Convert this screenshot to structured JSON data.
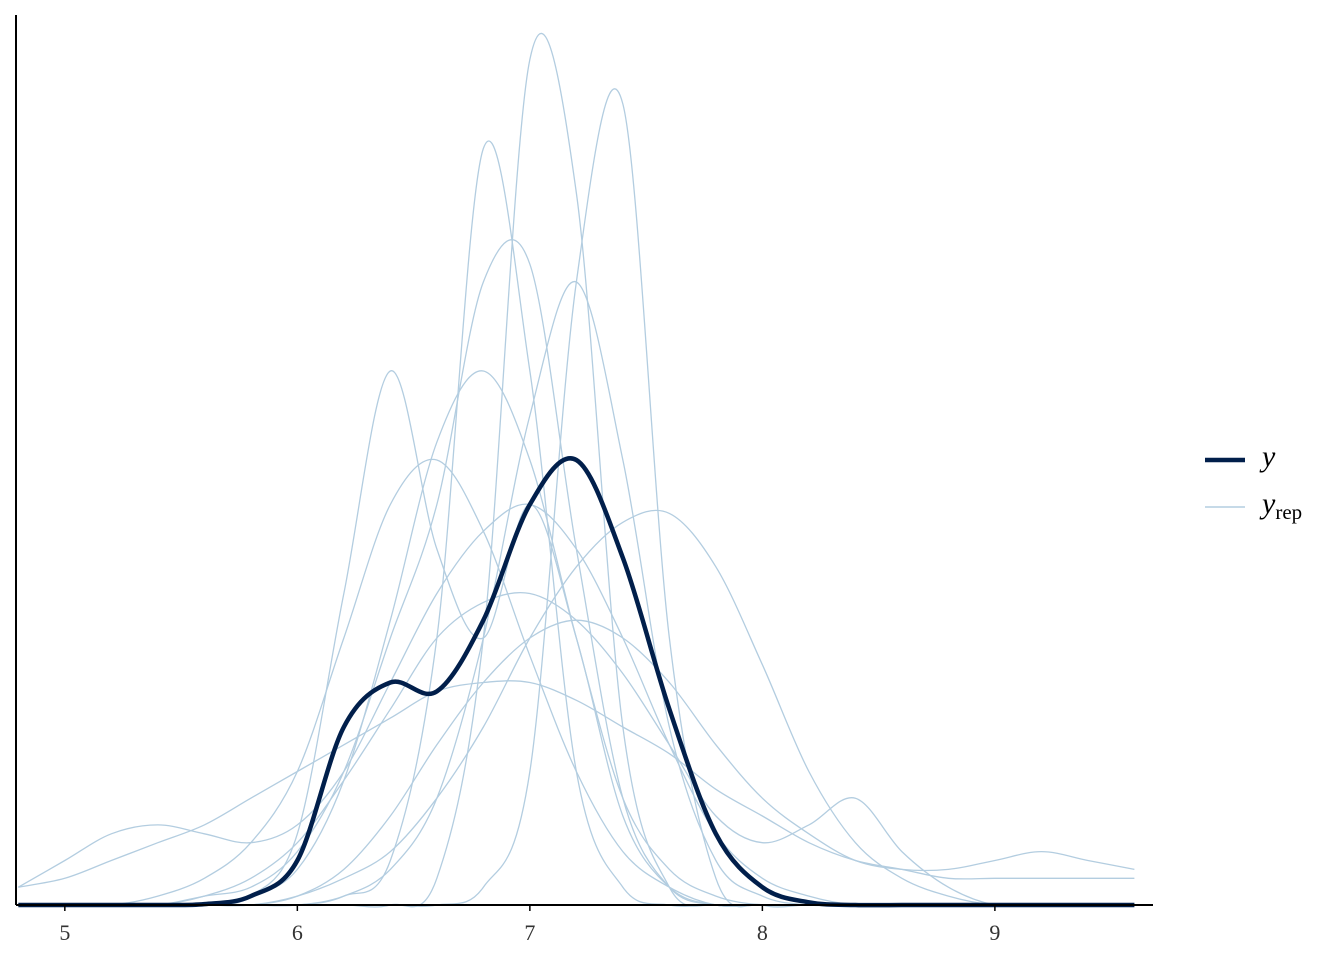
{
  "chart_data": {
    "type": "density_overlay",
    "x": [
      4.8,
      5.0,
      5.2,
      5.4,
      5.6,
      5.8,
      6.0,
      6.2,
      6.4,
      6.6,
      6.8,
      7.0,
      7.2,
      7.4,
      7.6,
      7.8,
      8.0,
      8.2,
      8.4,
      8.6,
      8.8,
      9.0,
      9.2,
      9.4,
      9.6
    ],
    "xlim": [
      4.79,
      9.68
    ],
    "xticks": [
      5,
      6,
      7,
      8,
      9
    ],
    "ylim": [
      0,
      1
    ],
    "series": [
      {
        "name": "y",
        "color": "#011f4b",
        "values": [
          0,
          0,
          0,
          0,
          0.001,
          0.01,
          0.05,
          0.2,
          0.25,
          0.24,
          0.32,
          0.45,
          0.5,
          0.39,
          0.22,
          0.08,
          0.02,
          0.003,
          0,
          0,
          0,
          0,
          0,
          0,
          0
        ]
      }
    ],
    "replicates": {
      "name": "y",
      "name_sub": "rep",
      "color": "#b3cde0",
      "draws": [
        [
          0,
          0,
          0,
          0,
          0,
          0,
          0,
          0,
          0,
          0.03,
          0.3,
          0.95,
          0.8,
          0.2,
          0.02,
          0,
          0,
          0,
          0,
          0,
          0,
          0,
          0,
          0,
          0
        ],
        [
          0,
          0,
          0,
          0,
          0,
          0,
          0,
          0,
          0,
          0,
          0.02,
          0.15,
          0.7,
          0.9,
          0.3,
          0.03,
          0,
          0,
          0,
          0,
          0,
          0,
          0,
          0,
          0
        ],
        [
          0,
          0,
          0,
          0,
          0,
          0,
          0,
          0.01,
          0.05,
          0.3,
          0.85,
          0.6,
          0.15,
          0.02,
          0,
          0,
          0,
          0,
          0,
          0,
          0,
          0,
          0,
          0,
          0
        ],
        [
          0,
          0,
          0,
          0,
          0,
          0.01,
          0.08,
          0.35,
          0.6,
          0.4,
          0.3,
          0.45,
          0.3,
          0.1,
          0.02,
          0,
          0,
          0,
          0,
          0,
          0,
          0,
          0,
          0,
          0
        ],
        [
          0.02,
          0.03,
          0.05,
          0.07,
          0.09,
          0.12,
          0.15,
          0.18,
          0.21,
          0.24,
          0.25,
          0.25,
          0.23,
          0.2,
          0.17,
          0.13,
          0.1,
          0.07,
          0.05,
          0.04,
          0.03,
          0.03,
          0.03,
          0.03,
          0.03
        ],
        [
          0,
          0,
          0,
          0,
          0,
          0,
          0.01,
          0.03,
          0.06,
          0.12,
          0.2,
          0.3,
          0.38,
          0.43,
          0.44,
          0.38,
          0.27,
          0.15,
          0.07,
          0.03,
          0.01,
          0,
          0,
          0,
          0
        ],
        [
          0,
          0,
          0,
          0.01,
          0.03,
          0.07,
          0.15,
          0.3,
          0.45,
          0.5,
          0.42,
          0.28,
          0.15,
          0.06,
          0.02,
          0,
          0,
          0,
          0,
          0,
          0,
          0,
          0,
          0,
          0
        ],
        [
          0,
          0,
          0,
          0,
          0,
          0,
          0,
          0.01,
          0.04,
          0.12,
          0.3,
          0.55,
          0.7,
          0.5,
          0.2,
          0.05,
          0.01,
          0,
          0,
          0,
          0,
          0,
          0,
          0,
          0
        ],
        [
          0,
          0,
          0,
          0,
          0.01,
          0.03,
          0.07,
          0.14,
          0.22,
          0.3,
          0.34,
          0.35,
          0.32,
          0.26,
          0.18,
          0.1,
          0.07,
          0.09,
          0.12,
          0.06,
          0.02,
          0,
          0,
          0,
          0
        ],
        [
          0.02,
          0.05,
          0.08,
          0.09,
          0.08,
          0.07,
          0.09,
          0.15,
          0.25,
          0.35,
          0.42,
          0.45,
          0.4,
          0.3,
          0.18,
          0.08,
          0.03,
          0.01,
          0,
          0,
          0,
          0,
          0,
          0,
          0
        ],
        [
          0,
          0,
          0,
          0,
          0,
          0.01,
          0.04,
          0.14,
          0.32,
          0.52,
          0.6,
          0.5,
          0.3,
          0.12,
          0.04,
          0.01,
          0,
          0,
          0,
          0,
          0,
          0,
          0,
          0,
          0
        ],
        [
          0,
          0,
          0,
          0,
          0,
          0,
          0.01,
          0.04,
          0.1,
          0.18,
          0.25,
          0.3,
          0.32,
          0.3,
          0.25,
          0.18,
          0.12,
          0.08,
          0.05,
          0.04,
          0.04,
          0.05,
          0.06,
          0.05,
          0.04
        ],
        [
          0,
          0,
          0,
          0,
          0.01,
          0.02,
          0.06,
          0.15,
          0.3,
          0.45,
          0.7,
          0.72,
          0.4,
          0.12,
          0.02,
          0,
          0,
          0,
          0,
          0,
          0,
          0,
          0,
          0,
          0
        ]
      ]
    }
  }
}
